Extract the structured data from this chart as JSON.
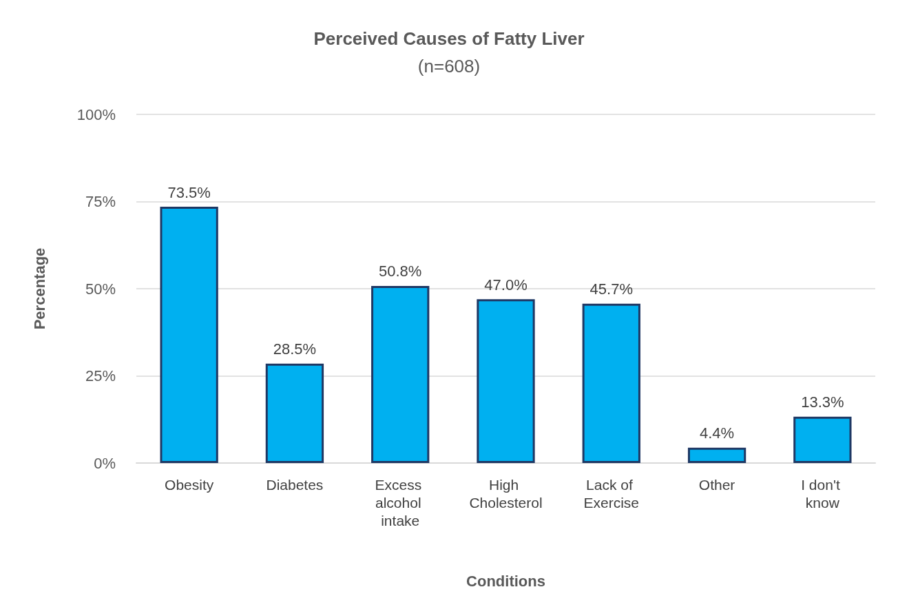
{
  "chart_data": {
    "type": "bar",
    "title": "Perceived Causes of Fatty Liver",
    "subtitle": "(n=608)",
    "xlabel": "Conditions",
    "ylabel": "Percentage",
    "categories": [
      "Obesity",
      "Diabetes",
      "Excess alcohol intake",
      "High Cholesterol",
      "Lack of Exercise",
      "Other",
      "I don't know"
    ],
    "values": [
      73.5,
      28.5,
      50.8,
      47.0,
      45.7,
      4.4,
      13.3
    ],
    "value_labels": [
      "73.5%",
      "28.5%",
      "50.8%",
      "47.0%",
      "45.7%",
      "4.4%",
      "13.3%"
    ],
    "color": "#00b0f0",
    "ylim": [
      0,
      100
    ],
    "yticks": [
      {
        "value": 0,
        "label": "0%"
      },
      {
        "value": 25,
        "label": "25%"
      },
      {
        "value": 50,
        "label": "50%"
      },
      {
        "value": 75,
        "label": "75%"
      },
      {
        "value": 100,
        "label": "100%"
      }
    ],
    "grid": "y"
  }
}
